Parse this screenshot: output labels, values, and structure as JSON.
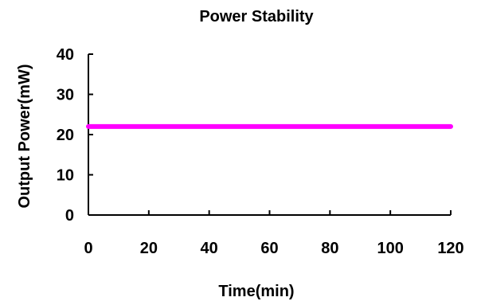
{
  "chart_data": {
    "type": "line",
    "title": "Power Stability",
    "xlabel": "Time(min)",
    "ylabel": "Output Power(mW)",
    "xlim": [
      0,
      120
    ],
    "ylim": [
      0,
      40
    ],
    "x_ticks": [
      0,
      20,
      40,
      60,
      80,
      100,
      120
    ],
    "y_ticks": [
      0,
      10,
      20,
      30,
      40
    ],
    "grid": false,
    "legend": "none",
    "series": [
      {
        "color": "#ff00ff",
        "x": [
          0,
          10,
          20,
          30,
          40,
          50,
          60,
          70,
          80,
          90,
          100,
          110,
          120
        ],
        "values": [
          22,
          22,
          22,
          22,
          22,
          22,
          22,
          22,
          22,
          22,
          22,
          22,
          22
        ]
      }
    ]
  }
}
